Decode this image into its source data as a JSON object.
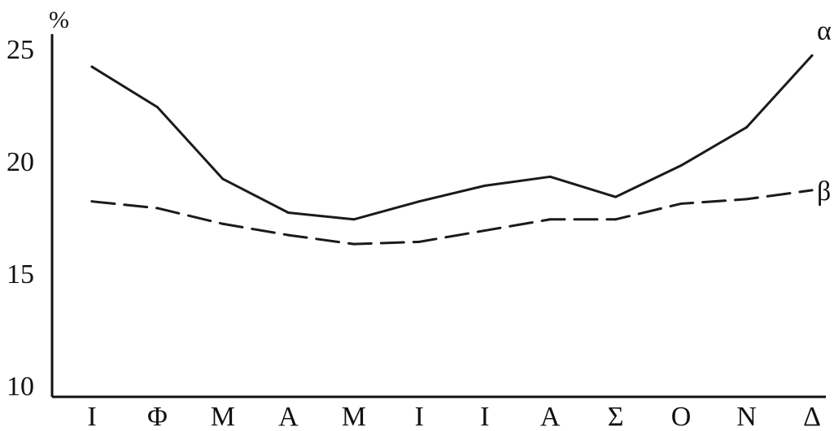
{
  "chart_data": {
    "type": "line",
    "title": "",
    "xlabel": "",
    "ylabel": "%",
    "categories": [
      "Ι",
      "Φ",
      "Μ",
      "Α",
      "Μ",
      "Ι",
      "Ι",
      "Α",
      "Σ",
      "Ο",
      "Ν",
      "Δ"
    ],
    "ylim": [
      10,
      26
    ],
    "yticks": [
      10,
      15,
      20,
      25
    ],
    "grid": false,
    "legend": "none",
    "series": [
      {
        "name": "α",
        "style": "solid",
        "values": [
          24.2,
          22.4,
          19.2,
          17.7,
          17.4,
          18.2,
          18.9,
          19.3,
          18.4,
          19.8,
          21.5,
          24.7
        ]
      },
      {
        "name": "β",
        "style": "dashed",
        "values": [
          18.2,
          17.9,
          17.2,
          16.7,
          16.3,
          16.4,
          16.9,
          17.4,
          17.4,
          18.1,
          18.3,
          18.7
        ]
      }
    ]
  }
}
